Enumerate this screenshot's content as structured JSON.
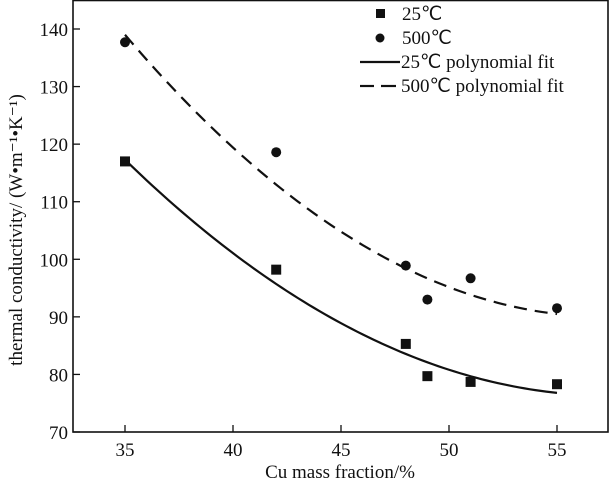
{
  "chart_data": {
    "type": "scatter",
    "title": "",
    "xlabel": "Cu  mass  fraction/%",
    "ylabel": "thermal conductivity/ (W•m⁻¹•K⁻¹)",
    "xlim": [
      32.6,
      57.0
    ],
    "ylim": [
      70,
      145
    ],
    "xticks": [
      35,
      40,
      45,
      50,
      55
    ],
    "yticks": [
      70,
      80,
      90,
      100,
      110,
      120,
      130,
      140
    ],
    "grid": false,
    "legend_position": "top-right",
    "series": [
      {
        "name": "25℃",
        "kind": "scatter",
        "marker": "square",
        "x": [
          35,
          42,
          48,
          49,
          51,
          55
        ],
        "y": [
          117.0,
          98.2,
          85.3,
          79.7,
          78.7,
          78.3
        ]
      },
      {
        "name": "500℃",
        "kind": "scatter",
        "marker": "circle",
        "x": [
          35,
          42,
          48,
          49,
          51,
          55
        ],
        "y": [
          137.7,
          118.6,
          98.9,
          93.0,
          96.7,
          91.5
        ]
      },
      {
        "name": "25℃  polynomial fit",
        "kind": "line",
        "style": "solid",
        "x": [
          35,
          45,
          55
        ],
        "y": [
          117.3,
          88.9,
          76.8
        ]
      },
      {
        "name": "500℃  polynomial fit",
        "kind": "line",
        "style": "dashed",
        "x": [
          35,
          45,
          55
        ],
        "y": [
          139.0,
          104.8,
          90.5
        ]
      }
    ],
    "legend": [
      {
        "marker": "square",
        "label": "25℃"
      },
      {
        "marker": "circle",
        "label": "500℃"
      },
      {
        "marker": "solid-line",
        "label": "25℃  polynomial fit"
      },
      {
        "marker": "dashed-line",
        "label": "500℃  polynomial fit"
      }
    ],
    "colors": {
      "ink": "#111111",
      "background": "#ffffff"
    }
  }
}
